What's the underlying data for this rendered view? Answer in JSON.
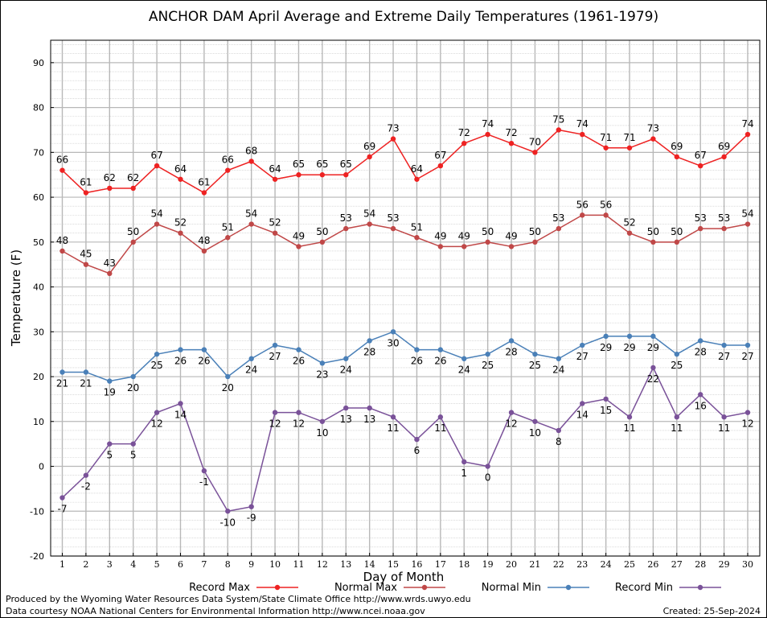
{
  "chart_data": {
    "type": "line",
    "title": "ANCHOR DAM April Average and Extreme Daily Temperatures (1961-1979)",
    "xlabel": "Day of Month",
    "ylabel": "Temperature (F)",
    "ylim": [
      -20,
      95
    ],
    "yticks": [
      -20,
      -10,
      0,
      10,
      20,
      30,
      40,
      50,
      60,
      70,
      80,
      90
    ],
    "x": [
      1,
      2,
      3,
      4,
      5,
      6,
      7,
      8,
      9,
      10,
      11,
      12,
      13,
      14,
      15,
      16,
      17,
      18,
      19,
      20,
      21,
      22,
      23,
      24,
      25,
      26,
      27,
      28,
      29,
      30
    ],
    "grid": true,
    "legend_position": "bottom",
    "series": [
      {
        "name": "Record Max",
        "color": "#ee2222",
        "label_pos": "above",
        "values": [
          66,
          61,
          62,
          62,
          67,
          64,
          61,
          66,
          68,
          64,
          65,
          65,
          65,
          69,
          73,
          64,
          67,
          72,
          74,
          72,
          70,
          75,
          74,
          71,
          71,
          73,
          69,
          67,
          69,
          74
        ]
      },
      {
        "name": "Normal Max",
        "color": "#c04848",
        "label_pos": "above",
        "values": [
          48,
          45,
          43,
          50,
          54,
          52,
          48,
          51,
          54,
          52,
          49,
          50,
          53,
          54,
          53,
          51,
          49,
          49,
          50,
          49,
          50,
          53,
          56,
          56,
          52,
          50,
          50,
          53,
          53,
          54
        ]
      },
      {
        "name": "Normal Min",
        "color": "#4a80b8",
        "label_pos": "below",
        "values": [
          21,
          21,
          19,
          20,
          25,
          26,
          26,
          20,
          24,
          27,
          26,
          23,
          24,
          28,
          30,
          26,
          26,
          24,
          25,
          28,
          25,
          24,
          27,
          29,
          29,
          29,
          25,
          28,
          27,
          27
        ]
      },
      {
        "name": "Record Min",
        "color": "#7a5299",
        "label_pos": "below",
        "values": [
          -7,
          -2,
          5,
          5,
          12,
          14,
          -1,
          -10,
          -9,
          12,
          12,
          10,
          13,
          13,
          11,
          6,
          11,
          1,
          0,
          12,
          10,
          8,
          14,
          15,
          11,
          22,
          11,
          16,
          11,
          12
        ]
      }
    ]
  },
  "footer": {
    "produced_by": "Produced by the Wyoming Water Resources Data System/State Climate Office http://www.wrds.uwyo.edu",
    "courtesy": "Data courtesy NOAA National Centers for Environmental Information http://www.ncei.noaa.gov",
    "created": "Created:  25-Sep-2024"
  }
}
